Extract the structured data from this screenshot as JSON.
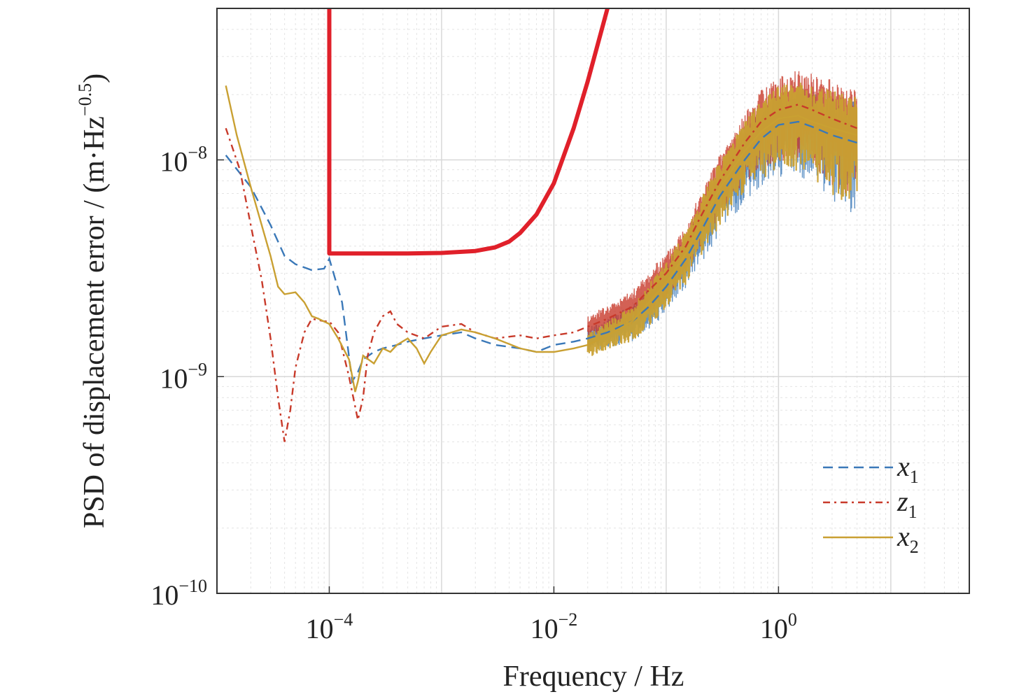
{
  "chart_data": {
    "type": "line",
    "title": "",
    "xlabel": "Frequency / Hz",
    "ylabel": "PSD of displacement error / (m·Hz",
    "ylabel_exp": "−0.5",
    "ylabel_close": ")",
    "xscale": "log",
    "yscale": "log",
    "xlim": [
      1e-05,
      50
    ],
    "ylim": [
      1e-10,
      5e-08
    ],
    "grid": true,
    "legend_position": "bottom-right",
    "x_ticks": [
      {
        "value": 0.0001,
        "base": "10",
        "exp": "−4"
      },
      {
        "value": 0.01,
        "base": "10",
        "exp": "−2"
      },
      {
        "value": 1,
        "base": "10",
        "exp": "0"
      }
    ],
    "y_ticks": [
      {
        "value": 1e-10,
        "base": "10",
        "exp": "−10"
      },
      {
        "value": 1e-09,
        "base": "10",
        "exp": "−9"
      },
      {
        "value": 1e-08,
        "base": "10",
        "exp": "−8"
      }
    ],
    "requirement": {
      "color": "#e0202a",
      "x": [
        0.0001,
        0.0001,
        0.0005,
        0.001,
        0.002,
        0.003,
        0.004,
        0.005,
        0.007,
        0.01,
        0.015,
        0.02,
        0.03
      ],
      "y": [
        5e-08,
        3.7e-09,
        3.7e-09,
        3.72e-09,
        3.8e-09,
        3.95e-09,
        4.2e-09,
        4.6e-09,
        5.6e-09,
        7.8e-09,
        1.4e-08,
        2.3e-08,
        5e-08
      ]
    },
    "series": [
      {
        "name": "x",
        "sub": "1",
        "color": "#3a78b8",
        "dash": "14,8",
        "x": [
          1.2e-05,
          2e-05,
          3e-05,
          4e-05,
          5e-05,
          7e-05,
          9e-05,
          0.0001,
          0.00013,
          0.00016,
          0.00018,
          0.0002,
          0.00025,
          0.0003,
          0.0004,
          0.0005,
          0.0007,
          0.001,
          0.0015,
          0.002,
          0.003,
          0.005,
          0.007,
          0.01,
          0.015,
          0.02,
          0.03,
          0.05,
          0.07,
          0.1,
          0.15,
          0.2,
          0.3,
          0.5,
          0.7,
          1.0,
          1.5,
          2,
          3,
          5
        ],
        "y": [
          1.05e-08,
          7.5e-09,
          5e-09,
          3.6e-09,
          3.3e-09,
          3.1e-09,
          3.15e-09,
          3.5e-09,
          2.2e-09,
          9.5e-10,
          1.05e-09,
          1.2e-09,
          1.3e-09,
          1.35e-09,
          1.4e-09,
          1.45e-09,
          1.5e-09,
          1.55e-09,
          1.6e-09,
          1.5e-09,
          1.4e-09,
          1.35e-09,
          1.3e-09,
          1.4e-09,
          1.45e-09,
          1.5e-09,
          1.6e-09,
          1.8e-09,
          2.1e-09,
          2.6e-09,
          3.5e-09,
          4.6e-09,
          6.8e-09,
          1e-08,
          1.25e-08,
          1.45e-08,
          1.5e-08,
          1.42e-08,
          1.3e-08,
          1.2e-08
        ]
      },
      {
        "name": "z",
        "sub": "1",
        "color": "#c83a2a",
        "dash": "10,6,3,6",
        "x": [
          1.2e-05,
          1.6e-05,
          2e-05,
          2.5e-05,
          3e-05,
          3.5e-05,
          4e-05,
          4.5e-05,
          5e-05,
          6e-05,
          7e-05,
          9e-05,
          0.0001,
          0.00012,
          0.00015,
          0.00018,
          0.0002,
          0.00022,
          0.00025,
          0.0003,
          0.00035,
          0.0004,
          0.0005,
          0.0007,
          0.001,
          0.0015,
          0.002,
          0.003,
          0.005,
          0.007,
          0.01,
          0.015,
          0.02,
          0.03,
          0.05,
          0.07,
          0.1,
          0.15,
          0.2,
          0.3,
          0.5,
          0.7,
          1.0,
          1.5,
          2,
          3,
          5
        ],
        "y": [
          1.4e-08,
          9e-09,
          5e-09,
          2.8e-09,
          1.5e-09,
          8e-10,
          5e-10,
          7e-10,
          1.1e-09,
          1.6e-09,
          1.85e-09,
          1.8e-09,
          1.8e-09,
          1.6e-09,
          1e-09,
          6.3e-10,
          8e-10,
          1.25e-09,
          1.6e-09,
          1.9e-09,
          2e-09,
          1.75e-09,
          1.6e-09,
          1.5e-09,
          1.7e-09,
          1.75e-09,
          1.6e-09,
          1.5e-09,
          1.55e-09,
          1.5e-09,
          1.55e-09,
          1.6e-09,
          1.7e-09,
          1.85e-09,
          2.1e-09,
          2.5e-09,
          3e-09,
          4e-09,
          5.4e-09,
          8e-09,
          1.2e-08,
          1.5e-08,
          1.7e-08,
          1.8e-08,
          1.7e-08,
          1.55e-08,
          1.4e-08
        ]
      },
      {
        "name": "x",
        "sub": "2",
        "color": "#c9a032",
        "dash": "",
        "x": [
          1.2e-05,
          1.5e-05,
          2e-05,
          2.5e-05,
          3e-05,
          3.5e-05,
          4e-05,
          5e-05,
          6e-05,
          7e-05,
          8e-05,
          0.0001,
          0.00012,
          0.00015,
          0.00017,
          0.00018,
          0.0002,
          0.00025,
          0.0003,
          0.00035,
          0.0004,
          0.0005,
          0.0006,
          0.0007,
          0.0008,
          0.001,
          0.0015,
          0.002,
          0.003,
          0.005,
          0.007,
          0.01,
          0.015,
          0.02,
          0.03,
          0.05,
          0.07,
          0.1,
          0.15,
          0.2,
          0.3,
          0.5,
          0.7,
          1.0,
          1.5,
          2,
          3,
          5
        ],
        "y": [
          2.2e-08,
          1.3e-08,
          7.5e-09,
          5e-09,
          3.6e-09,
          2.6e-09,
          2.4e-09,
          2.45e-09,
          2.2e-09,
          1.9e-09,
          1.85e-09,
          1.75e-09,
          1.5e-09,
          1.2e-09,
          8.5e-10,
          9.5e-10,
          1.25e-09,
          1.15e-09,
          1.35e-09,
          1.3e-09,
          1.4e-09,
          1.5e-09,
          1.35e-09,
          1.15e-09,
          1.3e-09,
          1.55e-09,
          1.65e-09,
          1.6e-09,
          1.5e-09,
          1.35e-09,
          1.3e-09,
          1.3e-09,
          1.35e-09,
          1.4e-09,
          1.55e-09,
          1.8e-09,
          2.2e-09,
          2.7e-09,
          3.7e-09,
          5e-09,
          7.4e-09,
          1.1e-08,
          1.35e-08,
          1.55e-08,
          1.6e-08,
          1.5e-08,
          1.4e-08,
          1.3e-08
        ]
      }
    ]
  }
}
